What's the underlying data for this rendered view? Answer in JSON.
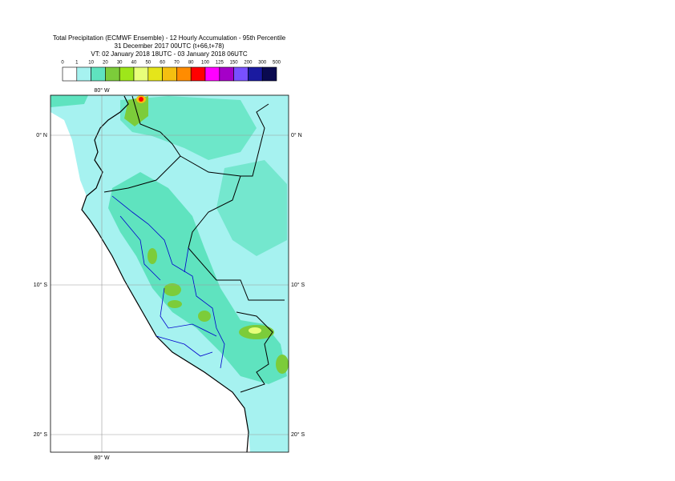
{
  "header": {
    "lines": [
      "Total Precipitation (ECMWF Ensemble) - 12 Hourly Accumulation - 95th Percentile",
      "31 December 2017 00UTC (t+66,t+78)",
      "VT: 02 January 2018 18UTC - 03 January 2018 06UTC"
    ]
  },
  "colorbar": {
    "labels": [
      "0",
      "1",
      "10",
      "20",
      "30",
      "40",
      "50",
      "60",
      "70",
      "80",
      "100",
      "125",
      "150",
      "200",
      "300",
      "500"
    ],
    "colors": [
      "#ffffff",
      "#a6f2f0",
      "#5fe3bf",
      "#7ccc3a",
      "#9ee61a",
      "#e8ff7a",
      "#e5e51a",
      "#f5bf10",
      "#ff8c00",
      "#ff0000",
      "#ff00ff",
      "#a500c8",
      "#7850ff",
      "#1a1aa0",
      "#0a0a50"
    ]
  },
  "map": {
    "lon_labels": [
      "80° W"
    ],
    "lat_labels": [
      "0° N",
      "10° S",
      "20° S"
    ]
  }
}
